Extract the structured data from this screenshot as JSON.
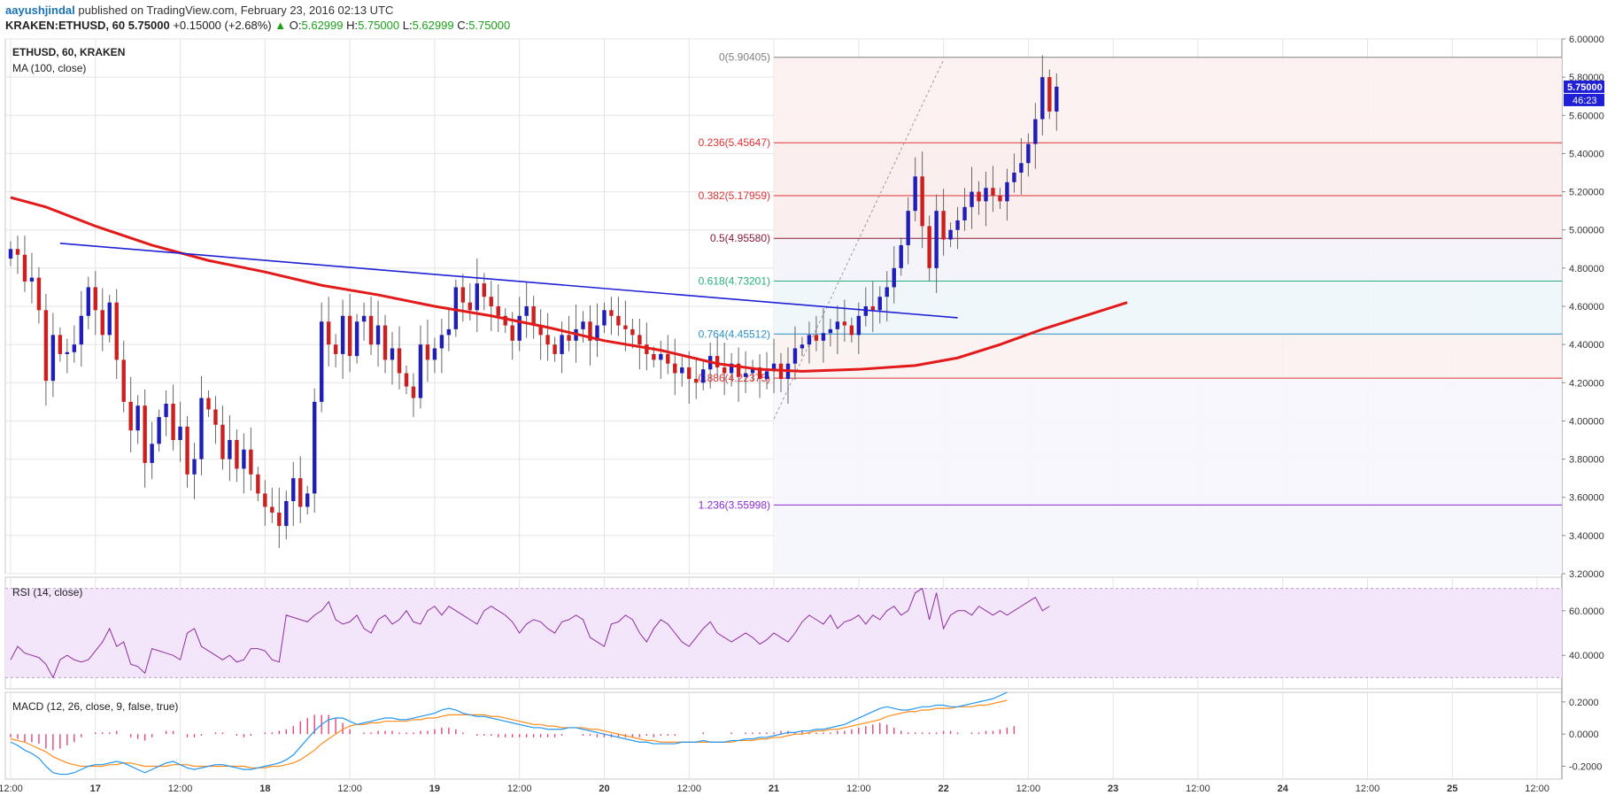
{
  "header": {
    "author": "aayushjindal",
    "published_text": "published on TradingView.com, February 23, 2016 02:13 UTC",
    "symbol": "KRAKEN:ETHUSD, 60",
    "last": "5.75000",
    "change_arrow": "▲",
    "change": "+0.15000 (+2.68%)",
    "o_label": "O:",
    "o_value": "5.62999",
    "h_label": "H:",
    "h_value": "5.75000",
    "l_label": "L:",
    "l_value": "5.62999",
    "c_label": "C:",
    "c_value": "5.75000"
  },
  "colors": {
    "up": "#1f1fb8",
    "down": "#cc1f1f",
    "ma": "#e31a1a",
    "trendline": "#1f1fd6",
    "rsi": "#8e2d9e",
    "macd": "#2196f3",
    "signal": "#ff8c1a",
    "hist": "#e0457b",
    "rsi_band": "#f3e6fb"
  },
  "chart_data": [
    {
      "type": "candlestick",
      "title": "ETHUSD, 60, KRAKEN",
      "indicator": "MA (100, close)",
      "ylim": [
        3.2,
        6.0
      ],
      "y_ticks": [
        "3.20000",
        "3.40000",
        "3.60000",
        "3.80000",
        "4.00000",
        "4.20000",
        "4.40000",
        "4.60000",
        "4.80000",
        "5.00000",
        "5.20000",
        "5.40000",
        "5.60000",
        "5.80000",
        "6.00000"
      ],
      "x_ticks": [
        {
          "label": "12:00",
          "bar": 0
        },
        {
          "label": "17",
          "bar": 12
        },
        {
          "label": "12:00",
          "bar": 24
        },
        {
          "label": "18",
          "bar": 36
        },
        {
          "label": "12:00",
          "bar": 48
        },
        {
          "label": "19",
          "bar": 60
        },
        {
          "label": "12:00",
          "bar": 72
        },
        {
          "label": "20",
          "bar": 84
        },
        {
          "label": "12:00",
          "bar": 96
        },
        {
          "label": "21",
          "bar": 108
        },
        {
          "label": "12:00",
          "bar": 120
        },
        {
          "label": "22",
          "bar": 132
        },
        {
          "label": "12:00",
          "bar": 144
        },
        {
          "label": "23",
          "bar": 156
        },
        {
          "label": "12:00",
          "bar": 168
        },
        {
          "label": "24",
          "bar": 180
        },
        {
          "label": "12:00",
          "bar": 192
        },
        {
          "label": "25",
          "bar": 204
        },
        {
          "label": "12:00",
          "bar": 216
        }
      ],
      "total_bars": 220,
      "last_price_label": "5.75000",
      "countdown_label": "46:23",
      "close": [
        4.9,
        4.87,
        4.73,
        4.75,
        4.58,
        4.21,
        4.45,
        4.35,
        4.36,
        4.4,
        4.55,
        4.7,
        4.58,
        4.45,
        4.62,
        4.32,
        4.1,
        3.95,
        4.08,
        3.78,
        3.88,
        4.02,
        4.09,
        3.9,
        3.97,
        3.72,
        3.8,
        4.12,
        4.06,
        3.98,
        3.8,
        3.9,
        3.75,
        3.85,
        3.72,
        3.62,
        3.55,
        3.52,
        3.45,
        3.58,
        3.7,
        3.55,
        3.62,
        4.1,
        4.52,
        4.4,
        4.35,
        4.55,
        4.34,
        4.52,
        4.55,
        4.4,
        4.5,
        4.32,
        4.38,
        4.25,
        4.18,
        4.12,
        4.4,
        4.32,
        4.38,
        4.45,
        4.48,
        4.7,
        4.62,
        4.58,
        4.72,
        4.65,
        4.6,
        4.55,
        4.5,
        4.42,
        4.55,
        4.6,
        4.5,
        4.45,
        4.4,
        4.35,
        4.45,
        4.42,
        4.48,
        4.52,
        4.42,
        4.5,
        4.58,
        4.55,
        4.5,
        4.48,
        4.45,
        4.4,
        4.35,
        4.32,
        4.35,
        4.3,
        4.25,
        4.28,
        4.22,
        4.2,
        4.27,
        4.34,
        4.28,
        4.25,
        4.3,
        4.23,
        4.25,
        4.28,
        4.22,
        4.26,
        4.3,
        4.22,
        4.3,
        4.38,
        4.4,
        4.45,
        4.42,
        4.46,
        4.48,
        4.52,
        4.5,
        4.45,
        4.55,
        4.6,
        4.58,
        4.65,
        4.7,
        4.8,
        4.92,
        5.1,
        5.28,
        5.02,
        4.8,
        5.1,
        4.95,
        5.0,
        5.05,
        5.12,
        5.2,
        5.15,
        5.22,
        5.18,
        5.15,
        5.25,
        5.3,
        5.35,
        5.45,
        5.58,
        5.8,
        5.62,
        5.75
      ],
      "moving_average": {
        "name": "MA (100, close)",
        "start_bar": 0,
        "points": [
          [
            0,
            5.17
          ],
          [
            5,
            5.12
          ],
          [
            12,
            5.02
          ],
          [
            20,
            4.92
          ],
          [
            28,
            4.84
          ],
          [
            36,
            4.78
          ],
          [
            44,
            4.71
          ],
          [
            52,
            4.66
          ],
          [
            60,
            4.6
          ],
          [
            68,
            4.55
          ],
          [
            76,
            4.49
          ],
          [
            84,
            4.42
          ],
          [
            92,
            4.37
          ],
          [
            100,
            4.3
          ],
          [
            106,
            4.27
          ],
          [
            112,
            4.26
          ],
          [
            120,
            4.27
          ],
          [
            128,
            4.29
          ],
          [
            134,
            4.33
          ],
          [
            140,
            4.4
          ],
          [
            146,
            4.48
          ],
          [
            152,
            4.55
          ],
          [
            158,
            4.62
          ]
        ]
      },
      "trendline": {
        "from": {
          "bar": 7,
          "price": 4.93
        },
        "to": {
          "bar": 134,
          "price": 4.54
        }
      },
      "fibonacci": {
        "from_bar": 108,
        "to_bar": 220,
        "swing_low": {
          "bar": 108,
          "price": 4.01
        },
        "swing_high": {
          "bar": 132,
          "price": 5.9
        },
        "levels": [
          {
            "ratio_label": "0(5.90405)",
            "price": 5.90405,
            "color": "#808080"
          },
          {
            "ratio_label": "0.236(5.45647)",
            "price": 5.45647,
            "color": "#e03030"
          },
          {
            "ratio_label": "0.382(5.17959)",
            "price": 5.17959,
            "color": "#e03030"
          },
          {
            "ratio_label": "0.5(4.95580)",
            "price": 4.9558,
            "color": "#8b1a3a"
          },
          {
            "ratio_label": "0.618(4.73201)",
            "price": 4.73201,
            "color": "#26b07a"
          },
          {
            "ratio_label": "0.764(4.45512)",
            "price": 4.45512,
            "color": "#2a8fc8"
          },
          {
            "ratio_label": "0.886(4.22375)",
            "price": 4.22375,
            "color": "#e03030"
          },
          {
            "ratio_label": "1.236(3.55998)",
            "price": 3.55998,
            "color": "#8a2bd4"
          }
        ]
      }
    },
    {
      "type": "line",
      "title": "RSI (14, close)",
      "ylim": [
        25,
        75
      ],
      "y_ticks": [
        "40.0000",
        "60.0000"
      ],
      "band": [
        30,
        70
      ],
      "values": [
        38,
        44,
        41,
        40,
        39,
        36,
        30,
        38,
        40,
        38,
        37,
        38,
        42,
        46,
        52,
        44,
        46,
        36,
        35,
        32,
        43,
        42,
        41,
        40,
        38,
        50,
        52,
        44,
        42,
        40,
        38,
        40,
        37,
        38,
        43,
        43,
        42,
        38,
        37,
        58,
        57,
        56,
        55,
        58,
        60,
        64,
        56,
        54,
        55,
        58,
        52,
        50,
        56,
        58,
        54,
        56,
        60,
        55,
        54,
        60,
        62,
        58,
        62,
        60,
        58,
        56,
        54,
        60,
        62,
        60,
        58,
        55,
        50,
        54,
        56,
        55,
        52,
        50,
        55,
        56,
        58,
        56,
        48,
        46,
        44,
        54,
        55,
        58,
        56,
        50,
        46,
        52,
        56,
        54,
        50,
        46,
        44,
        48,
        52,
        55,
        50,
        48,
        46,
        48,
        50,
        48,
        45,
        47,
        50,
        48,
        46,
        50,
        55,
        58,
        56,
        54,
        58,
        52,
        55,
        56,
        58,
        54,
        58,
        56,
        60,
        62,
        58,
        60,
        68,
        70,
        56,
        68,
        52,
        58,
        60,
        60,
        58,
        62,
        60,
        58,
        60,
        58,
        60,
        62,
        64,
        66,
        60,
        62
      ]
    },
    {
      "type": "line",
      "title": "MACD (12, 26, close, 9, false, true)",
      "ylim": [
        -0.28,
        0.26
      ],
      "y_ticks": [
        "0.2000",
        "0.0000",
        "-0.2000"
      ],
      "series": [
        {
          "name": "MACD",
          "values": [
            -0.05,
            -0.07,
            -0.1,
            -0.12,
            -0.15,
            -0.2,
            -0.24,
            -0.25,
            -0.25,
            -0.24,
            -0.22,
            -0.2,
            -0.19,
            -0.19,
            -0.18,
            -0.17,
            -0.18,
            -0.2,
            -0.22,
            -0.24,
            -0.22,
            -0.2,
            -0.18,
            -0.17,
            -0.19,
            -0.21,
            -0.22,
            -0.21,
            -0.2,
            -0.19,
            -0.19,
            -0.2,
            -0.21,
            -0.22,
            -0.22,
            -0.21,
            -0.2,
            -0.19,
            -0.18,
            -0.16,
            -0.13,
            -0.08,
            -0.03,
            0.02,
            0.06,
            0.09,
            0.1,
            0.1,
            0.08,
            0.06,
            0.07,
            0.08,
            0.09,
            0.1,
            0.1,
            0.09,
            0.09,
            0.1,
            0.11,
            0.12,
            0.13,
            0.15,
            0.16,
            0.15,
            0.13,
            0.12,
            0.11,
            0.11,
            0.1,
            0.09,
            0.08,
            0.07,
            0.06,
            0.05,
            0.04,
            0.04,
            0.03,
            0.03,
            0.03,
            0.04,
            0.04,
            0.03,
            0.02,
            0.01,
            0.0,
            -0.01,
            -0.02,
            -0.03,
            -0.04,
            -0.05,
            -0.05,
            -0.06,
            -0.06,
            -0.06,
            -0.06,
            -0.05,
            -0.05,
            -0.05,
            -0.04,
            -0.05,
            -0.05,
            -0.05,
            -0.04,
            -0.04,
            -0.03,
            -0.03,
            -0.02,
            -0.02,
            -0.01,
            0.0,
            0.01,
            0.01,
            0.02,
            0.02,
            0.03,
            0.03,
            0.04,
            0.05,
            0.06,
            0.08,
            0.1,
            0.12,
            0.14,
            0.16,
            0.17,
            0.16,
            0.15,
            0.15,
            0.16,
            0.17,
            0.17,
            0.18,
            0.18,
            0.17,
            0.17,
            0.18,
            0.19,
            0.2,
            0.21,
            0.22,
            0.24,
            0.26
          ]
        },
        {
          "name": "Signal",
          "values": [
            -0.03,
            -0.04,
            -0.05,
            -0.07,
            -0.09,
            -0.11,
            -0.14,
            -0.16,
            -0.18,
            -0.19,
            -0.2,
            -0.2,
            -0.2,
            -0.2,
            -0.19,
            -0.19,
            -0.18,
            -0.18,
            -0.19,
            -0.2,
            -0.2,
            -0.2,
            -0.2,
            -0.19,
            -0.19,
            -0.19,
            -0.2,
            -0.2,
            -0.2,
            -0.2,
            -0.2,
            -0.2,
            -0.2,
            -0.2,
            -0.21,
            -0.21,
            -0.21,
            -0.2,
            -0.2,
            -0.19,
            -0.18,
            -0.16,
            -0.13,
            -0.1,
            -0.06,
            -0.03,
            0.0,
            0.03,
            0.05,
            0.06,
            0.06,
            0.07,
            0.07,
            0.08,
            0.08,
            0.08,
            0.08,
            0.09,
            0.09,
            0.1,
            0.1,
            0.11,
            0.12,
            0.12,
            0.12,
            0.12,
            0.12,
            0.12,
            0.11,
            0.11,
            0.1,
            0.09,
            0.08,
            0.07,
            0.06,
            0.06,
            0.05,
            0.05,
            0.04,
            0.04,
            0.04,
            0.04,
            0.03,
            0.03,
            0.02,
            0.01,
            0.0,
            -0.01,
            -0.02,
            -0.03,
            -0.04,
            -0.04,
            -0.05,
            -0.05,
            -0.05,
            -0.05,
            -0.05,
            -0.05,
            -0.05,
            -0.05,
            -0.05,
            -0.05,
            -0.05,
            -0.04,
            -0.04,
            -0.04,
            -0.03,
            -0.03,
            -0.02,
            -0.02,
            -0.01,
            0.0,
            0.0,
            0.01,
            0.02,
            0.02,
            0.03,
            0.03,
            0.04,
            0.05,
            0.06,
            0.07,
            0.08,
            0.09,
            0.11,
            0.12,
            0.13,
            0.14,
            0.14,
            0.15,
            0.15,
            0.16,
            0.16,
            0.16,
            0.17,
            0.17,
            0.17,
            0.18,
            0.18,
            0.19,
            0.2,
            0.21
          ]
        },
        {
          "name": "Histogram",
          "values": [
            -0.02,
            -0.03,
            -0.05,
            -0.05,
            -0.06,
            -0.09,
            -0.1,
            -0.09,
            -0.07,
            -0.05,
            -0.02,
            0.0,
            0.01,
            0.01,
            0.01,
            0.02,
            0.0,
            -0.02,
            -0.03,
            -0.04,
            -0.02,
            0.0,
            0.02,
            0.02,
            0.0,
            -0.02,
            -0.02,
            -0.01,
            0.0,
            0.01,
            0.01,
            0.0,
            -0.01,
            -0.02,
            -0.01,
            0.0,
            0.01,
            0.01,
            0.02,
            0.03,
            0.05,
            0.08,
            0.1,
            0.12,
            0.12,
            0.12,
            0.1,
            0.07,
            0.03,
            0.0,
            0.01,
            0.01,
            0.02,
            0.02,
            0.02,
            0.01,
            0.01,
            0.01,
            0.02,
            0.02,
            0.03,
            0.04,
            0.04,
            0.03,
            0.01,
            0.0,
            -0.01,
            -0.01,
            -0.01,
            -0.02,
            -0.02,
            -0.02,
            -0.02,
            -0.02,
            -0.02,
            -0.02,
            -0.02,
            -0.02,
            -0.01,
            0.0,
            0.0,
            -0.01,
            -0.01,
            -0.02,
            -0.02,
            -0.02,
            -0.02,
            -0.02,
            -0.02,
            -0.02,
            -0.01,
            -0.02,
            -0.01,
            -0.01,
            -0.01,
            0.0,
            0.0,
            0.0,
            0.01,
            0.0,
            0.0,
            0.0,
            0.01,
            0.0,
            0.01,
            0.01,
            0.01,
            0.01,
            0.01,
            0.02,
            0.02,
            0.01,
            0.02,
            0.01,
            0.01,
            0.01,
            0.01,
            0.02,
            0.02,
            0.03,
            0.04,
            0.05,
            0.06,
            0.07,
            0.06,
            0.04,
            0.02,
            0.01,
            0.01,
            0.01,
            0.01,
            0.01,
            0.02,
            0.02,
            0.01,
            0.0,
            0.01,
            0.01,
            0.02,
            0.02,
            0.03,
            0.04,
            0.05
          ]
        }
      ]
    }
  ]
}
